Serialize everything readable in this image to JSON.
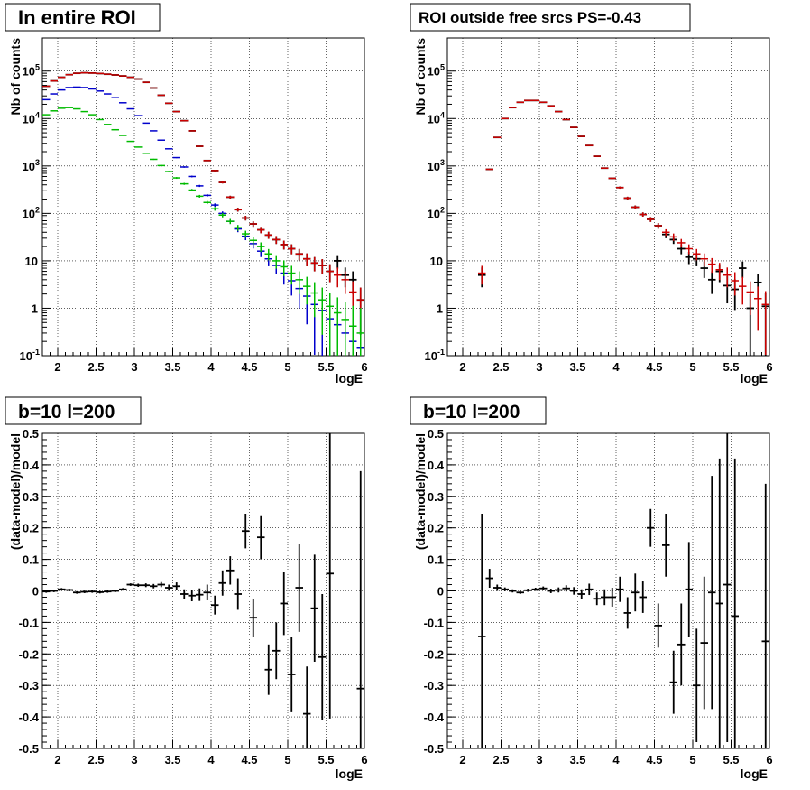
{
  "chart_data": [
    {
      "type": "scatter",
      "title": "In entire ROI",
      "xlabel": "logE",
      "ylabel": "Nb of counts",
      "xlim": [
        1.8,
        6.0
      ],
      "ylim": [
        0.1,
        500000
      ],
      "yscale": "log",
      "grid": true,
      "x_ticks": [
        "2",
        "2.5",
        "3",
        "3.5",
        "4",
        "4.5",
        "5",
        "5.5",
        "6"
      ],
      "series": [
        {
          "color": "#000000",
          "marker": "cross",
          "x": [
            1.85,
            1.95,
            2.05,
            2.15,
            2.25,
            2.35,
            2.45,
            2.55,
            2.65,
            2.75,
            2.85,
            2.95,
            3.05,
            3.15,
            3.25,
            3.35,
            3.45,
            3.55,
            3.65,
            3.75,
            3.85,
            3.95,
            4.05,
            4.15,
            4.25,
            4.35,
            4.45,
            4.55,
            4.65,
            4.75,
            4.85,
            4.95,
            5.05,
            5.15,
            5.25,
            5.35,
            5.45,
            5.55,
            5.65,
            5.75,
            5.85,
            5.95
          ],
          "values": [
            48000,
            62000,
            74000,
            84000,
            90000,
            92000,
            91000,
            89000,
            86000,
            83000,
            79000,
            74000,
            68000,
            58000,
            44000,
            31000,
            21000,
            14000,
            9000,
            5500,
            2600,
            1300,
            800,
            450,
            220,
            120,
            80,
            60,
            45,
            35,
            28,
            22,
            18,
            14,
            11,
            9,
            8,
            6,
            10,
            5,
            4,
            1.5
          ]
        },
        {
          "color": "#cc0000",
          "marker": "cross",
          "x": [
            1.85,
            1.95,
            2.05,
            2.15,
            2.25,
            2.35,
            2.45,
            2.55,
            2.65,
            2.75,
            2.85,
            2.95,
            3.05,
            3.15,
            3.25,
            3.35,
            3.45,
            3.55,
            3.65,
            3.75,
            3.85,
            3.95,
            4.05,
            4.15,
            4.25,
            4.35,
            4.45,
            4.55,
            4.65,
            4.75,
            4.85,
            4.95,
            5.05,
            5.15,
            5.25,
            5.35,
            5.45,
            5.55,
            5.65,
            5.75,
            5.85,
            5.95
          ],
          "values": [
            48000,
            62000,
            74000,
            84000,
            90000,
            92000,
            91000,
            89000,
            86000,
            83000,
            79000,
            74000,
            68000,
            58000,
            44000,
            31000,
            21000,
            14000,
            9000,
            5500,
            2600,
            1300,
            800,
            450,
            220,
            120,
            80,
            60,
            45,
            35,
            28,
            22,
            18,
            14,
            11,
            9,
            8,
            6,
            5,
            4,
            2.2,
            1.5
          ]
        },
        {
          "color": "#0000cc",
          "marker": "cross",
          "x": [
            1.85,
            1.95,
            2.05,
            2.15,
            2.25,
            2.35,
            2.45,
            2.55,
            2.65,
            2.75,
            2.85,
            2.95,
            3.05,
            3.15,
            3.25,
            3.35,
            3.45,
            3.55,
            3.65,
            3.75,
            3.85,
            3.95,
            4.05,
            4.15,
            4.25,
            4.35,
            4.45,
            4.55,
            4.65,
            4.75,
            4.85,
            4.95,
            5.05,
            5.15,
            5.25,
            5.35,
            5.45,
            5.55,
            5.65,
            5.75,
            5.85,
            5.95
          ],
          "values": [
            25000,
            33000,
            40000,
            45000,
            46000,
            45000,
            42000,
            38000,
            33000,
            27500,
            21500,
            16000,
            11500,
            8000,
            5500,
            3500,
            2300,
            1500,
            950,
            600,
            380,
            240,
            150,
            100,
            68,
            47,
            33,
            23,
            16,
            11,
            8,
            5.5,
            3.8,
            2.6,
            1.8,
            1.2,
            0.9,
            0.6,
            0.45,
            0.3,
            0.2,
            0.15
          ]
        },
        {
          "color": "#00bb00",
          "marker": "cross",
          "x": [
            1.85,
            1.95,
            2.05,
            2.15,
            2.25,
            2.35,
            2.45,
            2.55,
            2.65,
            2.75,
            2.85,
            2.95,
            3.05,
            3.15,
            3.25,
            3.35,
            3.45,
            3.55,
            3.65,
            3.75,
            3.85,
            3.95,
            4.05,
            4.15,
            4.25,
            4.35,
            4.45,
            4.55,
            4.65,
            4.75,
            4.85,
            4.95,
            5.05,
            5.15,
            5.25,
            5.35,
            5.45,
            5.55,
            5.65,
            5.75,
            5.85,
            5.95
          ],
          "values": [
            12000,
            14500,
            16500,
            17000,
            16000,
            14000,
            12000,
            9500,
            7500,
            5800,
            4400,
            3300,
            2500,
            1850,
            1380,
            1020,
            760,
            560,
            420,
            310,
            230,
            170,
            125,
            92,
            68,
            50,
            37,
            27,
            20,
            14,
            10,
            7.5,
            5.5,
            4,
            2.9,
            2.1,
            1.5,
            1.1,
            0.8,
            0.58,
            0.42,
            0.3
          ]
        }
      ]
    },
    {
      "type": "scatter",
      "title": "ROI outside free srcs PS=-0.43",
      "xlabel": "logE",
      "ylabel": "Nb of counts",
      "xlim": [
        1.8,
        6.0
      ],
      "ylim": [
        0.1,
        500000
      ],
      "yscale": "log",
      "grid": true,
      "x_ticks": [
        "2",
        "2.5",
        "3",
        "3.5",
        "4",
        "4.5",
        "5",
        "5.5",
        "6"
      ],
      "series": [
        {
          "color": "#000000",
          "marker": "cross",
          "x": [
            2.25,
            2.35,
            2.45,
            2.55,
            2.65,
            2.75,
            2.85,
            2.95,
            3.05,
            3.15,
            3.25,
            3.35,
            3.45,
            3.55,
            3.65,
            3.75,
            3.85,
            3.95,
            4.05,
            4.15,
            4.25,
            4.35,
            4.45,
            4.55,
            4.65,
            4.75,
            4.85,
            4.95,
            5.05,
            5.15,
            5.25,
            5.35,
            5.45,
            5.55,
            5.65,
            5.75,
            5.85,
            5.95
          ],
          "values": [
            5,
            850,
            4000,
            10000,
            17000,
            22000,
            24000,
            24000,
            22000,
            18500,
            14000,
            9500,
            6500,
            4200,
            2700,
            1600,
            900,
            550,
            350,
            210,
            135,
            95,
            75,
            55,
            36,
            28,
            18,
            12,
            11,
            7,
            4,
            6,
            3,
            2.5,
            7,
            1,
            3.5,
            1.1
          ]
        },
        {
          "color": "#cc0000",
          "marker": "cross",
          "x": [
            2.25,
            2.35,
            2.45,
            2.55,
            2.65,
            2.75,
            2.85,
            2.95,
            3.05,
            3.15,
            3.25,
            3.35,
            3.45,
            3.55,
            3.65,
            3.75,
            3.85,
            3.95,
            4.05,
            4.15,
            4.25,
            4.35,
            4.45,
            4.55,
            4.65,
            4.75,
            4.85,
            4.95,
            5.05,
            5.15,
            5.25,
            5.35,
            5.45,
            5.55,
            5.65,
            5.75,
            5.85,
            5.95
          ],
          "values": [
            5.5,
            850,
            4000,
            10000,
            17000,
            22000,
            24000,
            24000,
            22000,
            18500,
            14000,
            9500,
            6500,
            4200,
            2700,
            1600,
            900,
            550,
            350,
            210,
            135,
            95,
            75,
            55,
            40,
            32,
            24,
            18,
            14,
            11,
            8.5,
            6.5,
            5,
            3.8,
            2.9,
            2.2,
            1.6,
            1.2
          ]
        }
      ]
    },
    {
      "type": "scatter",
      "title": "b=10 l=200",
      "xlabel": "logE",
      "ylabel": "(data-model)/model",
      "xlim": [
        1.8,
        6.0
      ],
      "ylim": [
        -0.5,
        0.5
      ],
      "grid": true,
      "x_ticks": [
        "2",
        "2.5",
        "3",
        "3.5",
        "4",
        "4.5",
        "5",
        "5.5",
        "6"
      ],
      "y_ticks": [
        "-0.5",
        "-0.4",
        "-0.3",
        "-0.2",
        "-0.1",
        "0",
        "0.1",
        "0.2",
        "0.3",
        "0.4",
        "0.5"
      ],
      "series": [
        {
          "color": "#000000",
          "marker": "cross",
          "x": [
            1.85,
            1.95,
            2.05,
            2.15,
            2.25,
            2.35,
            2.45,
            2.55,
            2.65,
            2.75,
            2.85,
            2.95,
            3.05,
            3.15,
            3.25,
            3.35,
            3.45,
            3.55,
            3.65,
            3.75,
            3.85,
            3.95,
            4.05,
            4.15,
            4.25,
            4.35,
            4.45,
            4.55,
            4.65,
            4.75,
            4.85,
            4.95,
            5.05,
            5.15,
            5.25,
            5.35,
            5.45,
            5.55,
            5.95
          ],
          "values": [
            -0.002,
            0.0,
            0.005,
            0.003,
            -0.005,
            -0.003,
            -0.002,
            -0.004,
            -0.002,
            0.0,
            0.005,
            0.02,
            0.018,
            0.018,
            0.015,
            0.02,
            0.01,
            0.015,
            -0.01,
            -0.015,
            -0.012,
            -0.005,
            -0.045,
            0.025,
            0.065,
            -0.01,
            0.19,
            -0.085,
            0.17,
            -0.25,
            -0.19,
            -0.04,
            -0.265,
            0.01,
            -0.39,
            -0.055,
            -0.21,
            0.055,
            -0.31
          ],
          "errors": [
            0.004,
            0.004,
            0.004,
            0.004,
            0.004,
            0.004,
            0.004,
            0.004,
            0.004,
            0.004,
            0.004,
            0.004,
            0.005,
            0.006,
            0.007,
            0.008,
            0.01,
            0.012,
            0.015,
            0.018,
            0.02,
            0.025,
            0.03,
            0.04,
            0.045,
            0.05,
            0.055,
            0.06,
            0.07,
            0.08,
            0.09,
            0.1,
            0.12,
            0.14,
            0.15,
            0.17,
            0.2,
            0.46,
            0.69
          ]
        }
      ]
    },
    {
      "type": "scatter",
      "title": "b=10 l=200",
      "xlabel": "logE",
      "ylabel": "(data-model)/model",
      "xlim": [
        1.8,
        6.0
      ],
      "ylim": [
        -0.5,
        0.5
      ],
      "grid": true,
      "x_ticks": [
        "2",
        "2.5",
        "3",
        "3.5",
        "4",
        "4.5",
        "5",
        "5.5",
        "6"
      ],
      "y_ticks": [
        "-0.5",
        "-0.4",
        "-0.3",
        "-0.2",
        "-0.1",
        "0",
        "0.1",
        "0.2",
        "0.3",
        "0.4",
        "0.5"
      ],
      "series": [
        {
          "color": "#000000",
          "marker": "cross",
          "x": [
            2.25,
            2.35,
            2.45,
            2.55,
            2.65,
            2.75,
            2.85,
            2.95,
            3.05,
            3.15,
            3.25,
            3.35,
            3.45,
            3.55,
            3.65,
            3.75,
            3.85,
            3.95,
            4.05,
            4.15,
            4.25,
            4.35,
            4.45,
            4.55,
            4.65,
            4.75,
            4.85,
            4.95,
            5.05,
            5.15,
            5.25,
            5.35,
            5.45,
            5.55,
            5.95
          ],
          "values": [
            -0.145,
            0.04,
            0.01,
            0.005,
            0.0,
            -0.005,
            0.002,
            0.005,
            0.008,
            0.0,
            0.003,
            0.008,
            0.0,
            -0.01,
            0.005,
            -0.025,
            -0.02,
            -0.02,
            0.005,
            -0.07,
            -0.005,
            -0.02,
            0.2,
            -0.11,
            0.145,
            -0.29,
            -0.17,
            0.005,
            -0.3,
            -0.165,
            -0.005,
            -0.04,
            0.02,
            -0.08,
            -0.16
          ],
          "errors": [
            0.39,
            0.03,
            0.01,
            0.006,
            0.005,
            0.005,
            0.005,
            0.005,
            0.006,
            0.007,
            0.008,
            0.01,
            0.012,
            0.015,
            0.018,
            0.02,
            0.025,
            0.03,
            0.04,
            0.05,
            0.06,
            0.05,
            0.06,
            0.07,
            0.1,
            0.1,
            0.13,
            0.15,
            0.18,
            0.21,
            0.37,
            0.46,
            0.5,
            0.5,
            0.5
          ]
        }
      ]
    }
  ]
}
